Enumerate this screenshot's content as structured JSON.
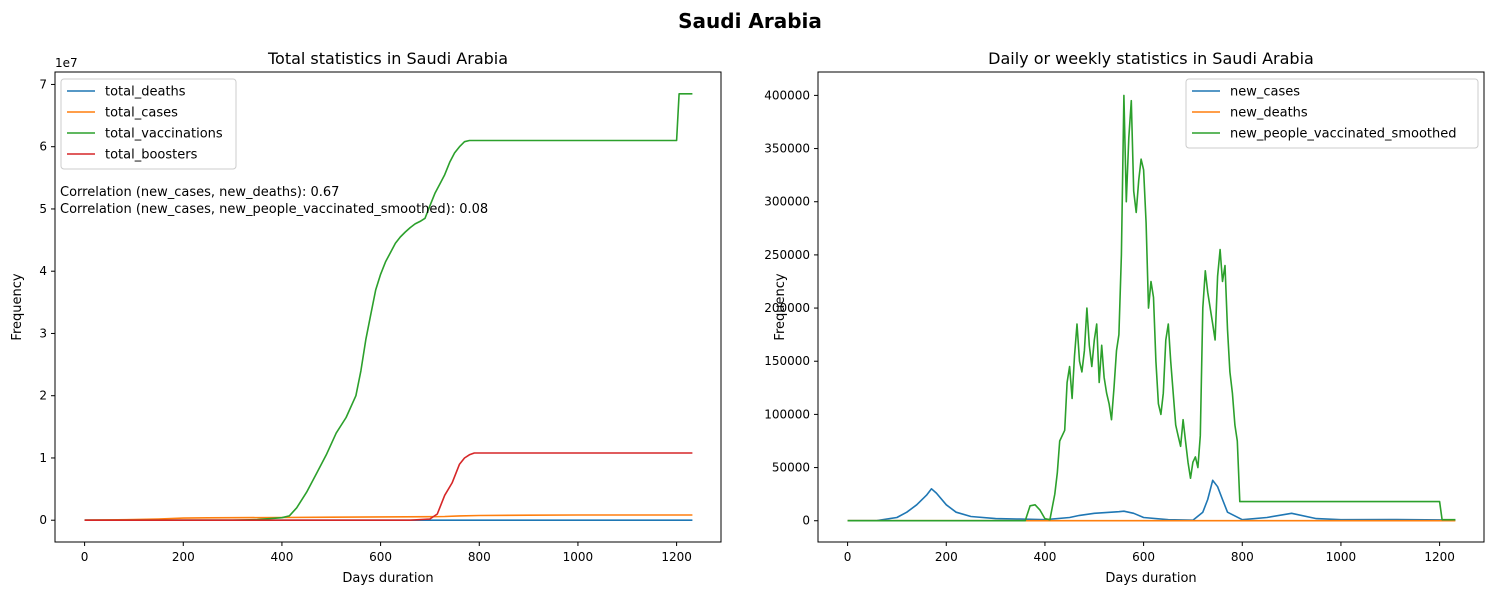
{
  "figure": {
    "suptitle": "Saudi Arabia"
  },
  "chart_data": [
    {
      "type": "line",
      "title": "Total statistics in Saudi Arabia",
      "xlabel": "Days duration",
      "ylabel": "Frequency",
      "xlim": [
        -60,
        1290
      ],
      "ylim": [
        -3500000,
        72000000
      ],
      "xticks": [
        0,
        200,
        400,
        600,
        800,
        1000,
        1200
      ],
      "yticks": [
        0,
        10000000,
        20000000,
        30000000,
        40000000,
        50000000,
        60000000,
        70000000
      ],
      "ytick_labels": [
        "0",
        "1",
        "2",
        "3",
        "4",
        "5",
        "6",
        "7"
      ],
      "offset_text": "1e7",
      "legend_position": "upper left",
      "annotations": [
        "Correlation (new_cases, new_deaths): 0.67",
        "Correlation (new_cases, new_people_vaccinated_smoothed): 0.08"
      ],
      "series": [
        {
          "name": "total_deaths",
          "color": "#1f77b4",
          "x": [
            0,
            100,
            200,
            300,
            400,
            500,
            600,
            700,
            800,
            1000,
            1232
          ],
          "y": [
            0,
            0,
            2500,
            4500,
            6500,
            8000,
            8500,
            8900,
            9200,
            9400,
            9500
          ]
        },
        {
          "name": "total_cases",
          "color": "#ff7f0e",
          "x": [
            0,
            100,
            150,
            200,
            250,
            300,
            400,
            500,
            600,
            700,
            730,
            760,
            800,
            900,
            1000,
            1232
          ],
          "y": [
            0,
            100000,
            200000,
            340000,
            380000,
            400000,
            430000,
            480000,
            540000,
            560000,
            600000,
            700000,
            760000,
            800000,
            830000,
            840000
          ]
        },
        {
          "name": "total_vaccinations",
          "color": "#2ca02c",
          "x": [
            0,
            100,
            200,
            300,
            350,
            400,
            415,
            430,
            450,
            470,
            490,
            510,
            530,
            550,
            560,
            570,
            580,
            590,
            600,
            610,
            620,
            630,
            640,
            650,
            660,
            670,
            680,
            690,
            700,
            710,
            720,
            730,
            740,
            750,
            760,
            770,
            780,
            790,
            800,
            900,
            1000,
            1100,
            1200,
            1205,
            1210,
            1232
          ],
          "y": [
            0,
            0,
            0,
            0,
            100000,
            400000,
            700000,
            2000000,
            4500000,
            7500000,
            10500000,
            14000000,
            16500000,
            20000000,
            24000000,
            29000000,
            33000000,
            37000000,
            39500000,
            41500000,
            43000000,
            44500000,
            45500000,
            46300000,
            47000000,
            47600000,
            48000000,
            48500000,
            50500000,
            52500000,
            54000000,
            55500000,
            57500000,
            59000000,
            60000000,
            60800000,
            61000000,
            61000000,
            61000000,
            61000000,
            61000000,
            61000000,
            61000000,
            68500000,
            68500000,
            68500000
          ]
        },
        {
          "name": "total_boosters",
          "color": "#d62728",
          "x": [
            0,
            300,
            500,
            660,
            700,
            715,
            730,
            745,
            760,
            770,
            780,
            790,
            800,
            1000,
            1232
          ],
          "y": [
            0,
            0,
            0,
            0,
            200000,
            1000000,
            4000000,
            6000000,
            9000000,
            10000000,
            10500000,
            10800000,
            10800000,
            10800000,
            10800000
          ]
        }
      ]
    },
    {
      "type": "line",
      "title": "Daily or weekly statistics in Saudi Arabia",
      "xlabel": "Days duration",
      "ylabel": "Frequency",
      "xlim": [
        -60,
        1290
      ],
      "ylim": [
        -20000,
        422000
      ],
      "xticks": [
        0,
        200,
        400,
        600,
        800,
        1000,
        1200
      ],
      "yticks": [
        0,
        50000,
        100000,
        150000,
        200000,
        250000,
        300000,
        350000,
        400000
      ],
      "legend_position": "upper right",
      "series": [
        {
          "name": "new_cases",
          "color": "#1f77b4",
          "x": [
            0,
            60,
            100,
            120,
            140,
            160,
            170,
            180,
            200,
            220,
            250,
            300,
            350,
            400,
            450,
            470,
            500,
            550,
            560,
            580,
            600,
            650,
            700,
            720,
            730,
            740,
            750,
            760,
            770,
            800,
            850,
            900,
            950,
            1000,
            1100,
            1200,
            1232
          ],
          "y": [
            0,
            200,
            3000,
            8000,
            15000,
            24000,
            30000,
            26000,
            15000,
            8000,
            4000,
            2000,
            1500,
            1000,
            3000,
            5000,
            7000,
            8500,
            9000,
            7000,
            3000,
            1000,
            500,
            8000,
            20000,
            38000,
            32000,
            20000,
            8000,
            1000,
            3000,
            7000,
            2000,
            1000,
            1200,
            800,
            500
          ]
        },
        {
          "name": "new_deaths",
          "color": "#ff7f0e",
          "x": [
            0,
            100,
            200,
            300,
            400,
            500,
            600,
            700,
            800,
            1000,
            1232
          ],
          "y": [
            0,
            10,
            40,
            30,
            10,
            10,
            15,
            10,
            5,
            3,
            2
          ]
        },
        {
          "name": "new_people_vaccinated_smoothed",
          "color": "#2ca02c",
          "x": [
            0,
            360,
            370,
            380,
            390,
            400,
            410,
            420,
            425,
            430,
            440,
            445,
            450,
            455,
            460,
            465,
            470,
            475,
            480,
            485,
            490,
            495,
            500,
            505,
            510,
            515,
            520,
            525,
            530,
            535,
            540,
            545,
            550,
            555,
            560,
            565,
            570,
            575,
            580,
            585,
            590,
            595,
            600,
            605,
            610,
            615,
            620,
            625,
            630,
            635,
            640,
            645,
            650,
            655,
            660,
            665,
            670,
            675,
            680,
            685,
            690,
            695,
            700,
            705,
            710,
            715,
            720,
            725,
            730,
            735,
            740,
            745,
            750,
            755,
            760,
            765,
            770,
            775,
            780,
            785,
            790,
            795,
            800,
            1000,
            1200,
            1205,
            1232
          ],
          "y": [
            0,
            0,
            14000,
            15000,
            10000,
            2000,
            1000,
            25000,
            45000,
            75000,
            85000,
            130000,
            145000,
            115000,
            155000,
            185000,
            150000,
            140000,
            160000,
            200000,
            165000,
            145000,
            170000,
            185000,
            130000,
            165000,
            135000,
            120000,
            110000,
            95000,
            125000,
            160000,
            175000,
            250000,
            400000,
            300000,
            360000,
            395000,
            310000,
            290000,
            320000,
            340000,
            330000,
            280000,
            200000,
            225000,
            210000,
            150000,
            110000,
            100000,
            120000,
            170000,
            185000,
            150000,
            120000,
            90000,
            80000,
            70000,
            95000,
            75000,
            55000,
            40000,
            55000,
            60000,
            50000,
            80000,
            200000,
            235000,
            215000,
            200000,
            185000,
            170000,
            230000,
            255000,
            225000,
            240000,
            180000,
            140000,
            120000,
            90000,
            75000,
            18000,
            18000,
            18000,
            18000,
            1000,
            1000
          ]
        }
      ]
    }
  ]
}
